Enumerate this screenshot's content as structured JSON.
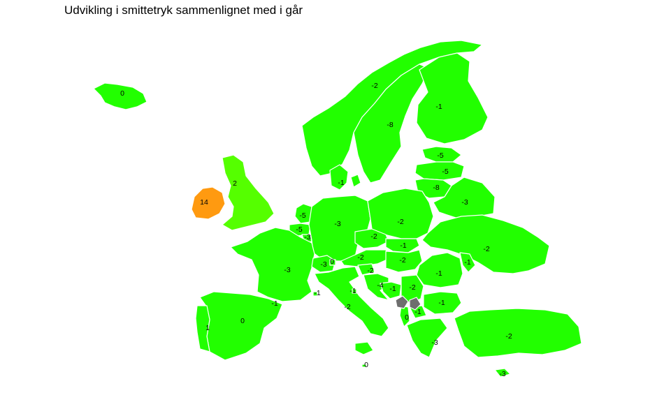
{
  "title": "Udvikling i smittetryk sammenlignet med i går",
  "colors": {
    "decrease": "#22ff00",
    "slight_increase": "#55ff00",
    "increase": "#ff9a10",
    "no_data": "#6e6e6e",
    "border": "#ffffff",
    "background": "#ffffff"
  },
  "regions": [
    {
      "id": "iceland",
      "label": "0"
    },
    {
      "id": "norway",
      "label": "-2"
    },
    {
      "id": "sweden",
      "label": "-8"
    },
    {
      "id": "finland",
      "label": "-1"
    },
    {
      "id": "estonia",
      "label": "-5"
    },
    {
      "id": "latvia",
      "label": "-5"
    },
    {
      "id": "lithuania",
      "label": "-8"
    },
    {
      "id": "belarus",
      "label": "-3"
    },
    {
      "id": "denmark",
      "label": "-1"
    },
    {
      "id": "united-kingdom",
      "label": "2"
    },
    {
      "id": "ireland",
      "label": "14"
    },
    {
      "id": "netherlands",
      "label": "-5"
    },
    {
      "id": "belgium",
      "label": "-5"
    },
    {
      "id": "luxembourg",
      "label": "-3"
    },
    {
      "id": "germany",
      "label": "-3"
    },
    {
      "id": "poland",
      "label": "-2"
    },
    {
      "id": "czechia",
      "label": "-2"
    },
    {
      "id": "slovakia",
      "label": "-1"
    },
    {
      "id": "austria",
      "label": "-2"
    },
    {
      "id": "hungary",
      "label": "-2"
    },
    {
      "id": "ukraine",
      "label": "-2"
    },
    {
      "id": "moldova",
      "label": "-1"
    },
    {
      "id": "romania",
      "label": "-1"
    },
    {
      "id": "france",
      "label": "-3"
    },
    {
      "id": "switzerland",
      "label": "-3"
    },
    {
      "id": "liechtenstein",
      "label": "0"
    },
    {
      "id": "slovenia",
      "label": "-2"
    },
    {
      "id": "croatia",
      "label": "-4"
    },
    {
      "id": "bosnia",
      "label": "-1"
    },
    {
      "id": "serbia",
      "label": "-2"
    },
    {
      "id": "bulgaria",
      "label": "-1"
    },
    {
      "id": "north-macedonia",
      "label": "-1"
    },
    {
      "id": "albania",
      "label": "0"
    },
    {
      "id": "greece",
      "label": "-3"
    },
    {
      "id": "turkey",
      "label": "-2"
    },
    {
      "id": "cyprus",
      "label": "-3"
    },
    {
      "id": "italy",
      "label": "-2"
    },
    {
      "id": "san-marino",
      "label": "-1"
    },
    {
      "id": "monaco",
      "label": "-1"
    },
    {
      "id": "andorra",
      "label": "-1"
    },
    {
      "id": "spain",
      "label": "0"
    },
    {
      "id": "portugal",
      "label": "1"
    },
    {
      "id": "malta",
      "label": "0"
    }
  ]
}
